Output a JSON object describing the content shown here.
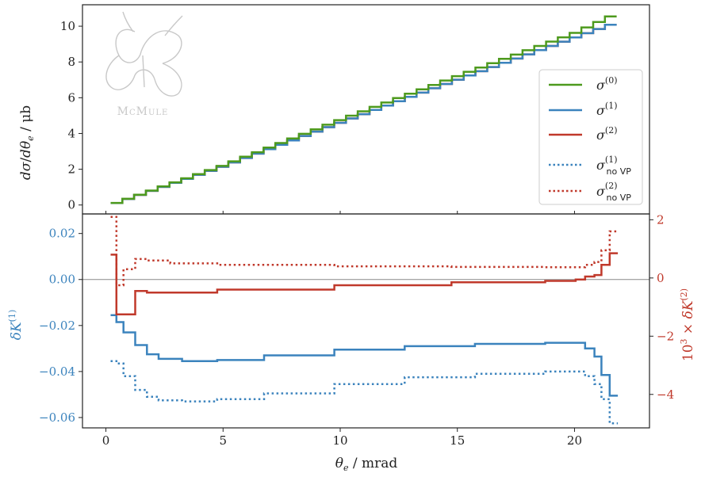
{
  "colors": {
    "sigma0": "#4d9a1d",
    "sigma1": "#3b83bd",
    "sigma2": "#c0392b",
    "axis": "#222222",
    "zero_line": "#888888",
    "logo": "#c8c8c8"
  },
  "logo_text": "McMule",
  "chart_data": [
    {
      "type": "line",
      "panel": "top",
      "ylabel": "dσ/dθ_e / μb",
      "xlim": [
        -1.0,
        23.2
      ],
      "ylim": [
        -0.5,
        11.2
      ],
      "yticks": [
        0,
        2,
        4,
        6,
        8,
        10
      ],
      "bin_edges": [
        0.2,
        21.8
      ],
      "bin_count": 43,
      "legend_position": "center-right",
      "series": [
        {
          "key": "sigma0",
          "name": "σ(0)",
          "style": "solid",
          "color": "sigma0",
          "values_at_x": [
            [
              0.2,
              0.0
            ],
            [
              5,
              2.2
            ],
            [
              10,
              4.75
            ],
            [
              15,
              7.2
            ],
            [
              20,
              9.6
            ],
            [
              21.8,
              10.7
            ]
          ]
        },
        {
          "key": "sigma1",
          "name": "σ(1)",
          "style": "solid",
          "color": "sigma1",
          "values_at_x": [
            [
              0.2,
              0.0
            ],
            [
              5,
              2.15
            ],
            [
              10,
              4.6
            ],
            [
              15,
              7.0
            ],
            [
              20,
              9.35
            ],
            [
              21.8,
              10.2
            ]
          ]
        },
        {
          "key": "sigma2",
          "name": "σ(2)",
          "style": "solid",
          "color": "sigma2",
          "values_at_x": [
            [
              0.2,
              0.0
            ],
            [
              5,
              2.15
            ],
            [
              10,
              4.6
            ],
            [
              15,
              7.0
            ],
            [
              20,
              9.35
            ],
            [
              21.8,
              10.2
            ]
          ]
        },
        {
          "key": "sigma1_novp",
          "name": "σ(1) no VP",
          "style": "dotted",
          "color": "sigma1",
          "values_at_x": []
        },
        {
          "key": "sigma2_novp",
          "name": "σ(2) no VP",
          "style": "dotted",
          "color": "sigma2",
          "values_at_x": []
        }
      ]
    },
    {
      "type": "line",
      "panel": "bottom",
      "xlabel": "θ_e / mrad",
      "ylabel_left": "δK(1)",
      "ylabel_right": "10³ × δK(2)",
      "xlim": [
        -1.0,
        23.2
      ],
      "xticks": [
        0,
        5,
        10,
        15,
        20
      ],
      "ylim_left": [
        -0.0645,
        0.0285
      ],
      "yticks_left": [
        "0.02",
        "0.00",
        "−0.02",
        "−0.04",
        "−0.06"
      ],
      "yticks_left_values": [
        0.02,
        0.0,
        -0.02,
        -0.04,
        -0.06
      ],
      "ylim_right": [
        -5.15,
        2.2
      ],
      "yticks_right": [
        "2",
        "0",
        "−2",
        "−4"
      ],
      "yticks_right_values": [
        2,
        0,
        -2,
        -4
      ],
      "series": [
        {
          "key": "dK1",
          "style": "solid",
          "color": "sigma1",
          "axis": "left",
          "points": [
            [
              0.45,
              -0.0155
            ],
            [
              0.7,
              -0.0185
            ],
            [
              1.0,
              -0.023
            ],
            [
              1.5,
              -0.0285
            ],
            [
              2.0,
              -0.0325
            ],
            [
              2.5,
              -0.0345
            ],
            [
              3.5,
              -0.0355
            ],
            [
              5,
              -0.035
            ],
            [
              7,
              -0.033
            ],
            [
              10,
              -0.0305
            ],
            [
              13,
              -0.029
            ],
            [
              16,
              -0.028
            ],
            [
              19,
              -0.0275
            ],
            [
              20.3,
              -0.0275
            ],
            [
              20.7,
              -0.03
            ],
            [
              21.1,
              -0.0335
            ],
            [
              21.4,
              -0.0415
            ],
            [
              21.75,
              -0.0505
            ]
          ]
        },
        {
          "key": "dK1_novp",
          "style": "dotted",
          "color": "sigma1",
          "axis": "left",
          "points": [
            [
              0.45,
              -0.0355
            ],
            [
              0.7,
              -0.0365
            ],
            [
              1.0,
              -0.042
            ],
            [
              1.5,
              -0.048
            ],
            [
              2.0,
              -0.051
            ],
            [
              2.5,
              -0.0525
            ],
            [
              3.5,
              -0.053
            ],
            [
              5,
              -0.052
            ],
            [
              7,
              -0.0495
            ],
            [
              10,
              -0.0455
            ],
            [
              13,
              -0.0425
            ],
            [
              16,
              -0.041
            ],
            [
              19,
              -0.04
            ],
            [
              20.3,
              -0.04
            ],
            [
              20.7,
              -0.042
            ],
            [
              21.1,
              -0.0455
            ],
            [
              21.4,
              -0.052
            ],
            [
              21.75,
              -0.0625
            ]
          ]
        },
        {
          "key": "dK2",
          "style": "solid",
          "color": "sigma2",
          "axis": "right",
          "points": [
            [
              0.45,
              0.8
            ],
            [
              0.7,
              -1.25
            ],
            [
              1.0,
              -1.25
            ],
            [
              1.5,
              -0.45
            ],
            [
              2.0,
              -0.5
            ],
            [
              3,
              -0.5
            ],
            [
              5,
              -0.4
            ],
            [
              10,
              -0.25
            ],
            [
              15,
              -0.15
            ],
            [
              19,
              -0.1
            ],
            [
              20.3,
              -0.05
            ],
            [
              20.7,
              0.05
            ],
            [
              21.1,
              0.1
            ],
            [
              21.4,
              0.45
            ],
            [
              21.75,
              0.85
            ]
          ]
        },
        {
          "key": "dK2_novp",
          "style": "dotted",
          "color": "sigma2",
          "axis": "right",
          "points": [
            [
              0.45,
              2.1
            ],
            [
              0.7,
              -0.25
            ],
            [
              1.0,
              0.3
            ],
            [
              1.5,
              0.65
            ],
            [
              2.0,
              0.6
            ],
            [
              3,
              0.5
            ],
            [
              5,
              0.45
            ],
            [
              10,
              0.4
            ],
            [
              15,
              0.38
            ],
            [
              19,
              0.37
            ],
            [
              20.3,
              0.37
            ],
            [
              20.7,
              0.45
            ],
            [
              21.1,
              0.55
            ],
            [
              21.4,
              0.95
            ],
            [
              21.75,
              1.6
            ]
          ]
        }
      ]
    }
  ]
}
